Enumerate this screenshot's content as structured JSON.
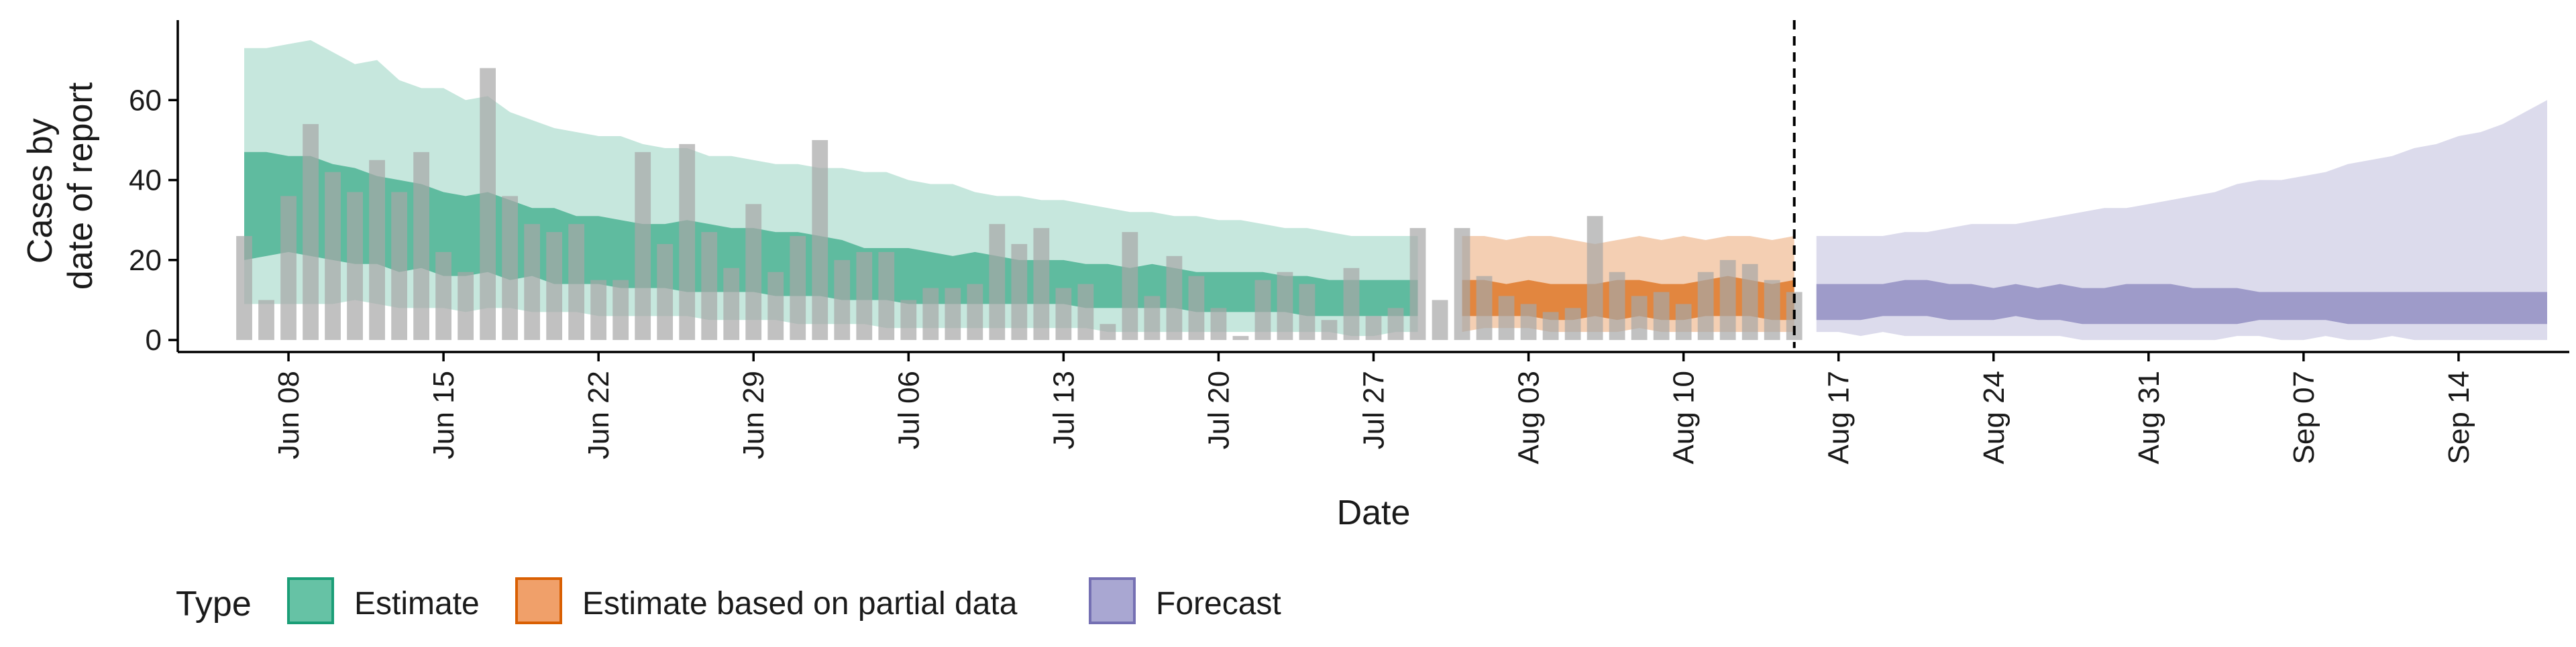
{
  "chart_data": {
    "type": "area",
    "xlabel": "Date",
    "ylabel": [
      "Cases by",
      "date of report"
    ],
    "ylim": [
      -3,
      80
    ],
    "y_ticks": [
      0,
      20,
      40,
      60
    ],
    "x_start": "2020-06-03",
    "x_end": "2020-09-19",
    "x_ticks": [
      {
        "date": "2020-06-08",
        "label": "Jun 08"
      },
      {
        "date": "2020-06-15",
        "label": "Jun 15"
      },
      {
        "date": "2020-06-22",
        "label": "Jun 22"
      },
      {
        "date": "2020-06-29",
        "label": "Jun 29"
      },
      {
        "date": "2020-07-06",
        "label": "Jul 06"
      },
      {
        "date": "2020-07-13",
        "label": "Jul 13"
      },
      {
        "date": "2020-07-20",
        "label": "Jul 20"
      },
      {
        "date": "2020-07-27",
        "label": "Jul 27"
      },
      {
        "date": "2020-08-03",
        "label": "Aug 03"
      },
      {
        "date": "2020-08-10",
        "label": "Aug 10"
      },
      {
        "date": "2020-08-17",
        "label": "Aug 17"
      },
      {
        "date": "2020-08-24",
        "label": "Aug 24"
      },
      {
        "date": "2020-08-31",
        "label": "Aug 31"
      },
      {
        "date": "2020-09-07",
        "label": "Sep 07"
      },
      {
        "date": "2020-09-14",
        "label": "Sep 14"
      }
    ],
    "grid": false,
    "legend": {
      "title": "Type",
      "position": "bottom-left",
      "items": [
        {
          "label": "Estimate",
          "fill": "#66c2a5",
          "stroke": "#1b9e77"
        },
        {
          "label": "Estimate based on partial data",
          "fill": "#f0a06a",
          "stroke": "#d95f02"
        },
        {
          "label": "Forecast",
          "fill": "#a9a7d2",
          "stroke": "#7570b3"
        }
      ]
    },
    "vline": {
      "date": "2020-08-15",
      "style": "dashed"
    },
    "reported_cases": {
      "start_date": "2020-06-06",
      "color": "#a6a6a6",
      "values": [
        26,
        10,
        36,
        54,
        42,
        37,
        45,
        37,
        47,
        22,
        17,
        68,
        36,
        29,
        27,
        29,
        15,
        15,
        47,
        24,
        49,
        27,
        18,
        34,
        17,
        26,
        50,
        20,
        22,
        22,
        10,
        13,
        13,
        14,
        29,
        24,
        28,
        13,
        14,
        4,
        27,
        11,
        21,
        16,
        8,
        1,
        15,
        17,
        14,
        5,
        18,
        6,
        8,
        28,
        10,
        28,
        16,
        11,
        9,
        7,
        8,
        31,
        17,
        11,
        12,
        9,
        17,
        20,
        19,
        15,
        12
      ]
    },
    "series": [
      {
        "name": "Estimate",
        "color": "#1b9e77",
        "start_date": "2020-06-06",
        "outer_fill_opacity": 0.25,
        "inner_fill_opacity": 0.6,
        "lower90": [
          9,
          9,
          9,
          9,
          9,
          10,
          9,
          8,
          8,
          8,
          7,
          8,
          8,
          7,
          7,
          7,
          6,
          6,
          6,
          6,
          6,
          5,
          5,
          5,
          5,
          4,
          4,
          4,
          4,
          3,
          3,
          3,
          3,
          3,
          3,
          3,
          3,
          3,
          3,
          2,
          2,
          2,
          2,
          2,
          2,
          2,
          2,
          2,
          2,
          2,
          1,
          1,
          2,
          2
        ],
        "upper90": [
          73,
          73,
          74,
          75,
          72,
          69,
          70,
          65,
          63,
          63,
          60,
          61,
          57,
          55,
          53,
          52,
          51,
          51,
          49,
          48,
          48,
          46,
          46,
          45,
          44,
          44,
          43,
          43,
          42,
          42,
          40,
          39,
          39,
          37,
          36,
          36,
          35,
          35,
          34,
          33,
          32,
          32,
          31,
          31,
          30,
          30,
          29,
          28,
          28,
          27,
          26,
          26,
          26,
          26
        ],
        "lower50": [
          20,
          21,
          22,
          21,
          20,
          19,
          19,
          17,
          18,
          16,
          16,
          17,
          15,
          16,
          14,
          14,
          14,
          13,
          13,
          13,
          12,
          12,
          12,
          12,
          11,
          11,
          11,
          10,
          10,
          10,
          9,
          9,
          9,
          9,
          9,
          9,
          9,
          9,
          8,
          8,
          8,
          8,
          8,
          7,
          7,
          7,
          7,
          7,
          6,
          6,
          6,
          6,
          6,
          6
        ],
        "upper50": [
          47,
          47,
          46,
          46,
          44,
          43,
          41,
          40,
          39,
          37,
          36,
          37,
          35,
          33,
          33,
          31,
          31,
          30,
          29,
          29,
          30,
          29,
          28,
          28,
          27,
          27,
          26,
          25,
          23,
          23,
          23,
          22,
          21,
          22,
          21,
          20,
          20,
          20,
          19,
          19,
          18,
          19,
          18,
          17,
          17,
          17,
          17,
          16,
          16,
          15,
          15,
          15,
          15,
          15
        ]
      },
      {
        "name": "Estimate based on partial data",
        "color": "#d95f02",
        "start_date": "2020-07-31",
        "outer_fill_opacity": 0.3,
        "inner_fill_opacity": 0.65,
        "lower90": [
          2,
          3,
          3,
          3,
          2,
          2,
          2,
          2,
          3,
          2,
          2,
          2,
          2,
          2,
          2,
          2
        ],
        "upper90": [
          26,
          26,
          25,
          26,
          26,
          25,
          24,
          25,
          26,
          25,
          26,
          25,
          26,
          26,
          25,
          26
        ],
        "lower50": [
          6,
          6,
          6,
          6,
          5,
          5,
          6,
          5,
          6,
          5,
          5,
          6,
          6,
          6,
          5,
          5
        ],
        "upper50": [
          15,
          15,
          14,
          15,
          14,
          14,
          14,
          15,
          15,
          14,
          14,
          15,
          16,
          15,
          14,
          15
        ]
      },
      {
        "name": "Forecast",
        "color": "#7570b3",
        "start_date": "2020-08-16",
        "outer_fill_opacity": 0.25,
        "inner_fill_opacity": 0.6,
        "lower90": [
          2,
          2,
          1,
          2,
          1,
          1,
          1,
          1,
          1,
          1,
          1,
          1,
          0,
          0,
          0,
          0,
          0,
          0,
          0,
          1,
          1,
          0,
          0,
          1,
          0,
          0,
          1,
          0,
          0,
          0,
          0,
          0,
          0,
          0
        ],
        "upper90": [
          26,
          26,
          26,
          26,
          27,
          27,
          28,
          29,
          29,
          29,
          30,
          31,
          32,
          33,
          33,
          34,
          35,
          36,
          37,
          39,
          40,
          40,
          41,
          42,
          44,
          45,
          46,
          48,
          49,
          51,
          52,
          54,
          57,
          60
        ],
        "lower50": [
          5,
          5,
          5,
          6,
          6,
          6,
          5,
          5,
          5,
          6,
          5,
          5,
          4,
          4,
          4,
          4,
          4,
          4,
          4,
          4,
          5,
          5,
          5,
          5,
          4,
          4,
          4,
          4,
          4,
          4,
          4,
          4,
          4,
          4
        ],
        "upper50": [
          14,
          14,
          14,
          14,
          15,
          15,
          14,
          14,
          13,
          14,
          13,
          14,
          13,
          13,
          14,
          14,
          14,
          13,
          13,
          13,
          12,
          12,
          12,
          12,
          12,
          12,
          12,
          12,
          12,
          12,
          12,
          12,
          12,
          12
        ]
      }
    ]
  }
}
